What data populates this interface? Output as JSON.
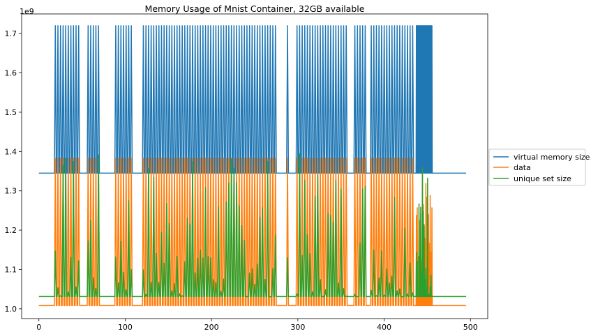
{
  "chart_data": {
    "type": "line",
    "title": "Memory Usage of Mnist Container, 32GB available",
    "xlabel": "",
    "ylabel": "",
    "y_offset_label": "1e9",
    "xlim": [
      -20,
      520
    ],
    "ylim": [
      975000000.0,
      1750000000.0
    ],
    "x_ticks": [
      0,
      100,
      200,
      300,
      400,
      500
    ],
    "x_tick_labels": [
      "0",
      "100",
      "200",
      "300",
      "400",
      "500"
    ],
    "y_ticks": [
      1000000000.0,
      1100000000.0,
      1200000000.0,
      1300000000.0,
      1400000000.0,
      1500000000.0,
      1600000000.0,
      1700000000.0
    ],
    "y_tick_labels": [
      "1.0",
      "1.1",
      "1.2",
      "1.3",
      "1.4",
      "1.5",
      "1.6",
      "1.7"
    ],
    "grid": false,
    "legend_position": "outside right, center",
    "x_range": [
      0,
      495
    ],
    "spike_active_range": [
      18,
      455
    ],
    "gaps": [
      [
        48,
        55
      ],
      [
        69,
        87
      ],
      [
        108,
        119
      ],
      [
        276,
        286
      ],
      [
        289,
        297
      ],
      [
        357,
        364
      ],
      [
        378,
        383
      ],
      [
        433,
        436
      ]
    ],
    "spike_period": 3,
    "dense_spike_range": [
      436,
      455
    ],
    "series": [
      {
        "name": "virtual memory size",
        "color": "#1f77b4",
        "baseline": 1345000000.0,
        "peak": 1720000000.0,
        "trough": 1345000000.0
      },
      {
        "name": "data",
        "color": "#ff7f0e",
        "baseline": 1008000000.0,
        "peak": 1383000000.0,
        "trough": 1008000000.0
      },
      {
        "name": "unique set size",
        "color": "#2ca02c",
        "baseline": 1031000000.0,
        "peak_range": [
          1030000000.0,
          1400000000.0
        ],
        "trough": 1031000000.0
      }
    ]
  }
}
